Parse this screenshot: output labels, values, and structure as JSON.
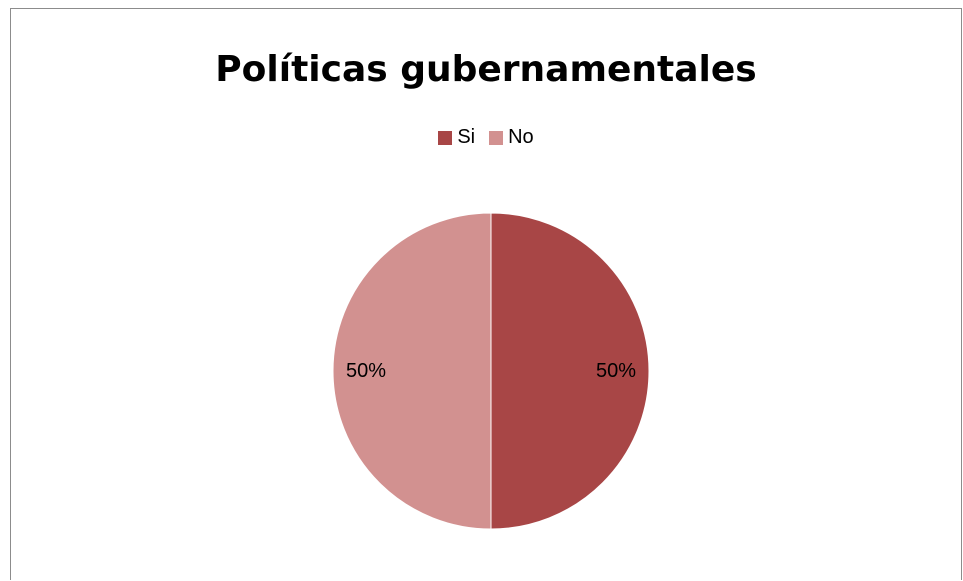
{
  "chart_data": {
    "type": "pie",
    "title": "Políticas gubernamentales",
    "categories": [
      "Si",
      "No"
    ],
    "values": [
      50,
      50
    ],
    "data_labels": [
      "50%",
      "50%"
    ],
    "colors": [
      "#a84646",
      "#d29190"
    ],
    "legend_position": "top"
  }
}
